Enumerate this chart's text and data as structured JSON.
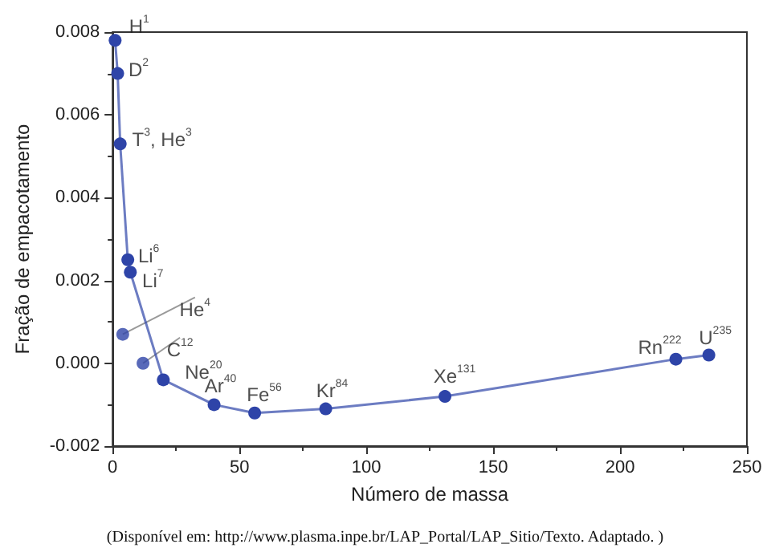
{
  "chart_data": {
    "type": "line",
    "xlabel": "Número de massa",
    "ylabel": "Fração de empacotamento",
    "xlim": [
      0,
      250
    ],
    "xticks": [
      0,
      50,
      100,
      150,
      200,
      250
    ],
    "ylim": [
      -0.002,
      0.008
    ],
    "yticks": [
      -0.002,
      {
        "value": 0,
        "label": "0.000"
      },
      0.002,
      0.004,
      0.006,
      0.008
    ],
    "grid": false,
    "marker": "circle",
    "line_style": "solid",
    "series": [
      {
        "color": "#2e44a8",
        "x": [
          1,
          2,
          3,
          6,
          7,
          20,
          40,
          56,
          84,
          131,
          222,
          235
        ],
        "values": [
          0.0078,
          0.007,
          0.0053,
          0.0025,
          0.0022,
          -0.0004,
          -0.001,
          -0.0012,
          -0.0011,
          -0.0008,
          0.0001,
          0.0002
        ]
      },
      {
        "type": "scatter",
        "color": "#2e44a8",
        "x": [
          4,
          12
        ],
        "values": [
          0.0007,
          0.0
        ]
      }
    ],
    "annotations": [
      {
        "text": "H$^{1}$",
        "x": 1,
        "y": 0.0078
      },
      {
        "text": "D$^{2}$",
        "x": 2,
        "y": 0.007
      },
      {
        "text": "T$^{3}$, He$^{3}$",
        "x": 3,
        "y": 0.0053
      },
      {
        "text": "Li$^{6}$",
        "x": 6,
        "y": 0.0025
      },
      {
        "text": "Li$^{7}$",
        "x": 7,
        "y": 0.0022
      },
      {
        "text": "He$^{4}$",
        "x": 4,
        "y": 0.0007
      },
      {
        "text": "C$^{12}$",
        "x": 12,
        "y": 0.0
      },
      {
        "text": "Ne$^{20}$",
        "x": 20,
        "y": -0.0004
      },
      {
        "text": "Ar$^{40}$",
        "x": 40,
        "y": -0.001
      },
      {
        "text": "Fe$^{56}$",
        "x": 56,
        "y": -0.0012
      },
      {
        "text": "Kr$^{84}$",
        "x": 84,
        "y": -0.0011
      },
      {
        "text": "Xe$^{131}$",
        "x": 131,
        "y": -0.0008
      },
      {
        "text": "Rn$^{222}$",
        "x": 222,
        "y": 0.0001
      },
      {
        "text": "U$^{235}$",
        "x": 235,
        "y": 0.0002
      },
      "(Disponível em: http://www.plasma.inpe.br/LAP_Portal/LAP_Sitio/Texto. Adaptado. )"
    ]
  }
}
